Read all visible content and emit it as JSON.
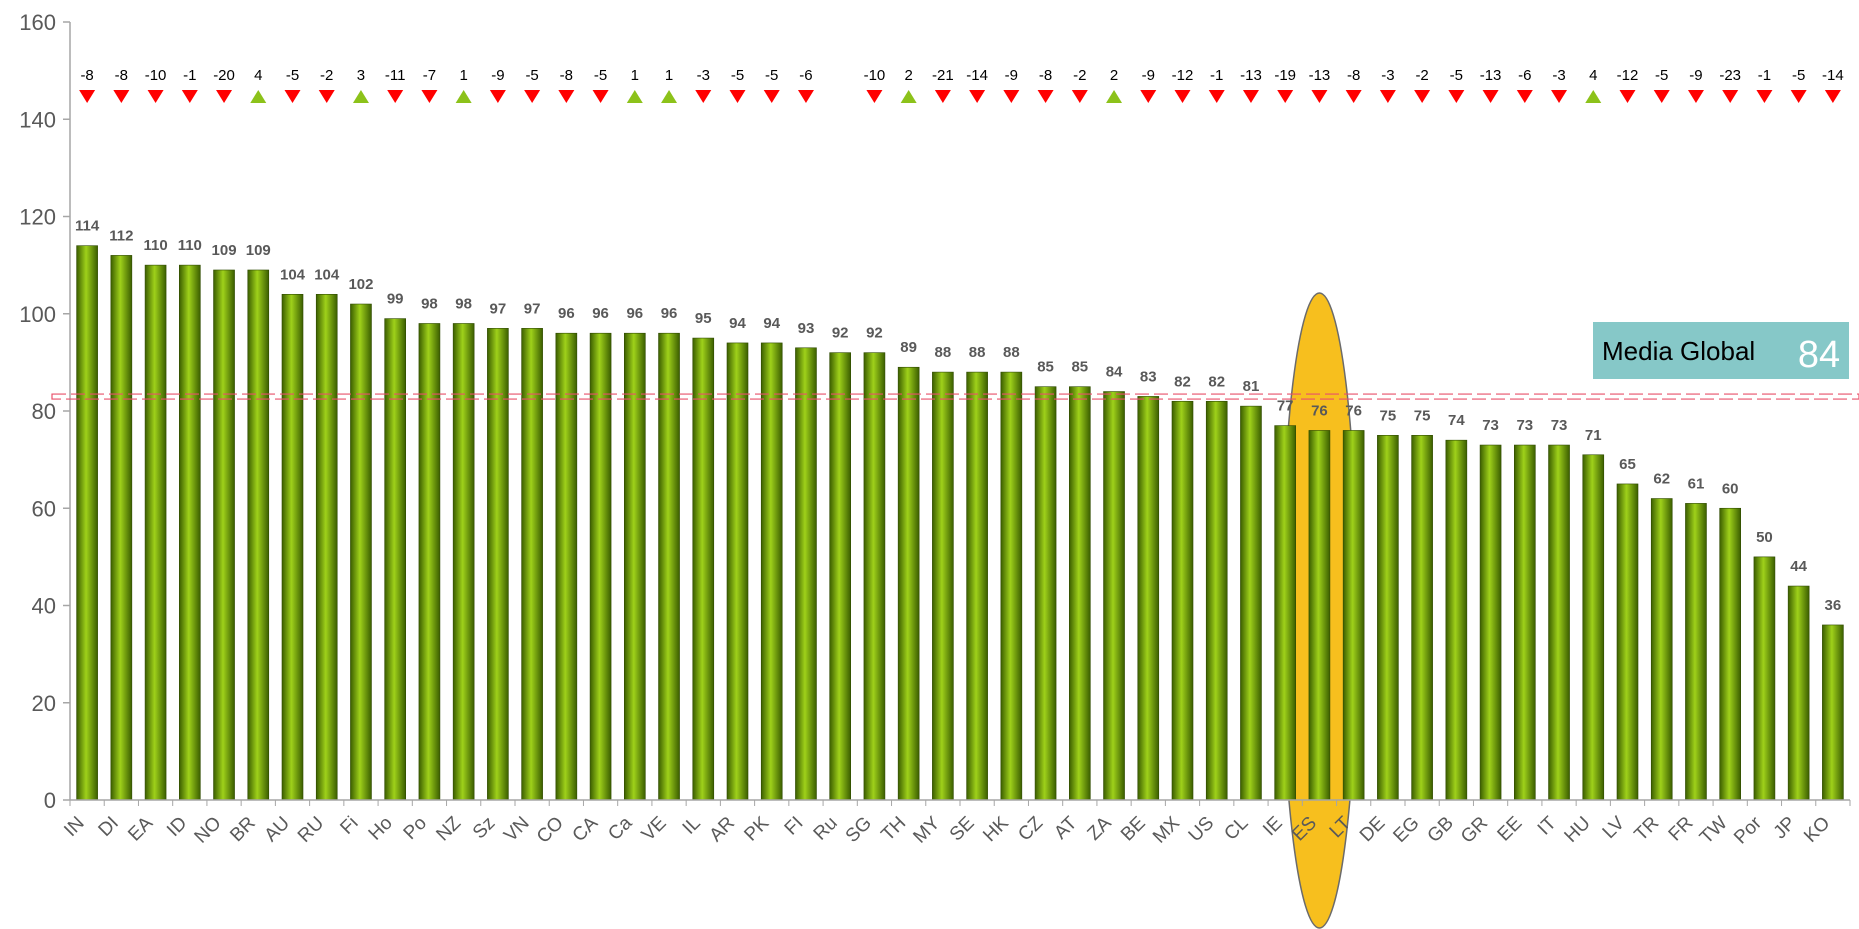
{
  "chart_data": {
    "type": "bar",
    "categories": [
      "IN",
      "DI",
      "EA",
      "ID",
      "NO",
      "BR",
      "AU",
      "RU",
      "Fi",
      "Ho",
      "Po",
      "NZ",
      "Sz",
      "VN",
      "CO",
      "CA",
      "Ca",
      "VE",
      "IL",
      "AR",
      "PK",
      "FI",
      "Ru",
      "SG",
      "TH",
      "MY",
      "SE",
      "HK",
      "CZ",
      "AT",
      "ZA",
      "BE",
      "MX",
      "US",
      "CL",
      "IE",
      "ES",
      "LT",
      "DE",
      "EG",
      "GB",
      "GR",
      "EE",
      "IT",
      "HU",
      "LV",
      "TR",
      "FR",
      "TW",
      "Por",
      "JP",
      "KO"
    ],
    "values": [
      114,
      112,
      110,
      110,
      109,
      109,
      104,
      104,
      102,
      99,
      98,
      98,
      97,
      97,
      96,
      96,
      96,
      96,
      95,
      94,
      94,
      93,
      92,
      92,
      89,
      88,
      88,
      88,
      85,
      85,
      84,
      83,
      82,
      82,
      81,
      77,
      76,
      76,
      75,
      75,
      74,
      73,
      73,
      73,
      71,
      65,
      62,
      61,
      60,
      50,
      44,
      36
    ],
    "value_labels": [
      "114",
      "112",
      "110",
      "110",
      "109",
      "109",
      "104",
      "104",
      "102",
      "99",
      "98",
      "98",
      "97",
      "97",
      "96",
      "96",
      "96",
      "96",
      "95",
      "94",
      "94",
      "93",
      "92",
      "92",
      "89",
      "88",
      "88",
      "88",
      "85",
      "85",
      "84",
      "83",
      "82",
      "82",
      "81",
      "77",
      "76",
      "76",
      "75",
      "75",
      "74",
      "73",
      "73",
      "73",
      "71",
      "65",
      "62",
      "61",
      "60",
      "50",
      "44",
      "36"
    ],
    "changes": [
      -8,
      -8,
      -10,
      -1,
      -20,
      4,
      -5,
      -2,
      3,
      -11,
      -7,
      1,
      -9,
      -5,
      -8,
      -5,
      1,
      1,
      -3,
      -5,
      -5,
      -6,
      null,
      -10,
      2,
      -21,
      -14,
      -9,
      -8,
      -2,
      2,
      -9,
      -12,
      -1,
      -13,
      -19,
      -13,
      -8,
      -3,
      -2,
      -5,
      -13,
      -6,
      -3,
      4,
      -12,
      -5,
      -9,
      -23,
      -1,
      -5,
      -14
    ],
    "change_labels": [
      "-8",
      "-8",
      "-10",
      "-1",
      "-20",
      "4",
      "-5",
      "-2",
      "3",
      "-11",
      "-7",
      "1",
      "-9",
      "-5",
      "-8",
      "-5",
      "1",
      "1",
      "-3",
      "-5",
      "-5",
      "-6",
      "",
      "-10",
      "2",
      "-21",
      "-14",
      "-9",
      "-8",
      "-2",
      "2",
      "-9",
      "-12",
      "-1",
      "-13",
      "-19",
      "-13",
      "-8",
      "-3",
      "-2",
      "-5",
      "-13",
      "-6",
      "-3",
      "4",
      "-12",
      "-5",
      "-9",
      "-23",
      "-1",
      "-5",
      "-14"
    ],
    "ylim": [
      0,
      160
    ],
    "yticks": [
      0,
      20,
      40,
      60,
      80,
      100,
      120,
      140,
      160
    ],
    "ytick_labels": [
      "0",
      "20",
      "40",
      "60",
      "80",
      "100",
      "120",
      "140",
      "160"
    ],
    "reference_line": {
      "label": "Media Global",
      "value": 84,
      "value_label": "84"
    },
    "highlight_category": "ES",
    "colors": {
      "bar_dark": "#3b5e00",
      "bar_light": "#9fd11a",
      "up_marker": "#8cc21a",
      "down_marker": "#ff0000",
      "reference_line": "#e8506a",
      "reference_box": "#86c8c8",
      "highlight": "#f7bf1e",
      "axis": "#a6a6a6"
    },
    "title": "",
    "xlabel": "",
    "ylabel": "",
    "grid": false,
    "legend": "none"
  }
}
